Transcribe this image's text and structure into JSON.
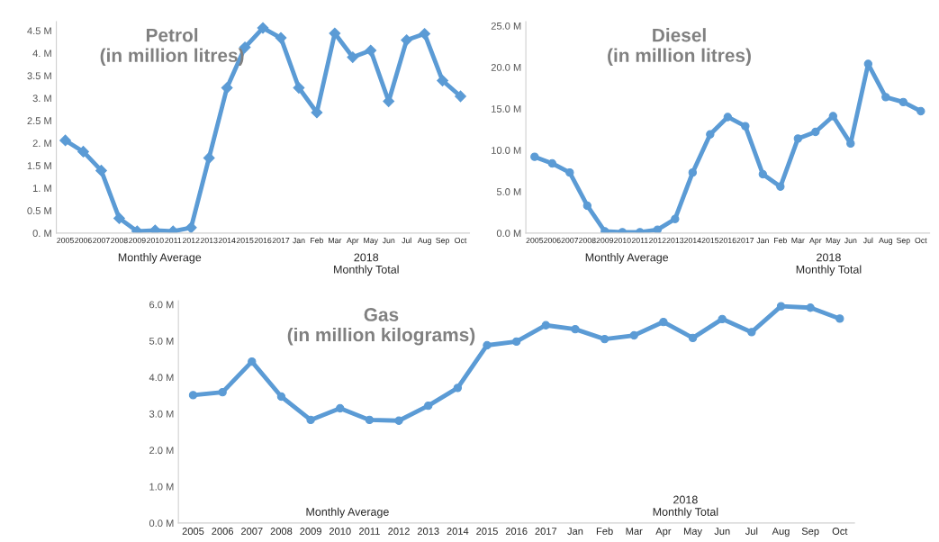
{
  "chart_data": [
    {
      "type": "line",
      "title": "Petrol\n(in million litres)",
      "categories": [
        "2005",
        "2006",
        "2007",
        "2008",
        "2009",
        "2010",
        "2011",
        "2012",
        "2013",
        "2014",
        "2015",
        "2016",
        "2017",
        "Jan",
        "Feb",
        "Mar",
        "Apr",
        "May",
        "Jun",
        "Jul",
        "Aug",
        "Sep",
        "Oct"
      ],
      "series": [
        {
          "color": "#5b9bd5",
          "values": [
            2.06,
            1.81,
            1.39,
            0.33,
            0.04,
            0.06,
            0.04,
            0.12,
            1.67,
            3.23,
            4.13,
            4.56,
            4.34,
            3.23,
            2.68,
            4.44,
            3.91,
            4.06,
            2.93,
            4.29,
            4.43,
            3.39,
            3.04
          ]
        }
      ],
      "ylim": [
        0,
        4.7
      ],
      "yticks": [
        {
          "value": 0,
          "label": "0. M"
        },
        {
          "value": 0.5,
          "label": "0.5 M"
        },
        {
          "value": 1,
          "label": "1. M"
        },
        {
          "value": 1.5,
          "label": "1.5 M"
        },
        {
          "value": 2,
          "label": "2. M"
        },
        {
          "value": 2.5,
          "label": "2.5 M"
        },
        {
          "value": 3,
          "label": "3. M"
        },
        {
          "value": 3.5,
          "label": "3.5 M"
        },
        {
          "value": 4,
          "label": "4. M"
        },
        {
          "value": 4.5,
          "label": "4.5 M"
        }
      ],
      "marker": "diamond",
      "grid": false,
      "annotations": [
        "Monthly Average",
        "2018\nMonthly Total"
      ]
    },
    {
      "type": "line",
      "title": "Diesel\n(in million litres)",
      "categories": [
        "2005",
        "2006",
        "2007",
        "2008",
        "2009",
        "2010",
        "2011",
        "2012",
        "2013",
        "2014",
        "2015",
        "2016",
        "2017",
        "Jan",
        "Feb",
        "Mar",
        "Apr",
        "May",
        "Jun",
        "Jul",
        "Aug",
        "Sep",
        "Oct"
      ],
      "series": [
        {
          "color": "#5b9bd5",
          "values": [
            9.2,
            8.4,
            7.3,
            3.3,
            0.2,
            0.1,
            0.1,
            0.4,
            1.7,
            7.3,
            11.9,
            14.0,
            12.9,
            7.1,
            5.6,
            11.4,
            12.2,
            14.1,
            10.8,
            20.4,
            16.4,
            15.8,
            14.7
          ]
        }
      ],
      "ylim": [
        0,
        25.5
      ],
      "yticks": [
        {
          "value": 0,
          "label": "0.0 M"
        },
        {
          "value": 5,
          "label": "5.0 M"
        },
        {
          "value": 10,
          "label": "10.0 M"
        },
        {
          "value": 15,
          "label": "15.0 M"
        },
        {
          "value": 20,
          "label": "20.0 M"
        },
        {
          "value": 25,
          "label": "25.0 M"
        }
      ],
      "marker": "circle",
      "grid": false,
      "annotations": [
        "Monthly Average",
        "2018\nMonthly Total"
      ]
    },
    {
      "type": "line",
      "title": "Gas\n(in million kilograms)",
      "categories": [
        "2005",
        "2006",
        "2007",
        "2008",
        "2009",
        "2010",
        "2011",
        "2012",
        "2013",
        "2014",
        "2015",
        "2016",
        "2017",
        "Jan",
        "Feb",
        "Mar",
        "Apr",
        "May",
        "Jun",
        "Jul",
        "Aug",
        "Sep",
        "Oct"
      ],
      "series": [
        {
          "color": "#5b9bd5",
          "values": [
            3.51,
            3.59,
            4.43,
            3.47,
            2.83,
            3.15,
            2.83,
            2.81,
            3.22,
            3.71,
            4.88,
            4.98,
            5.43,
            5.32,
            5.05,
            5.15,
            5.52,
            5.08,
            5.6,
            5.24,
            5.95,
            5.91,
            5.61
          ]
        }
      ],
      "ylim": [
        0,
        6.1
      ],
      "yticks": [
        {
          "value": 0,
          "label": "0.0 M"
        },
        {
          "value": 1,
          "label": "1.0 M"
        },
        {
          "value": 2,
          "label": "2.0 M"
        },
        {
          "value": 3,
          "label": "3.0 M"
        },
        {
          "value": 4,
          "label": "4.0 M"
        },
        {
          "value": 5,
          "label": "5.0 M"
        },
        {
          "value": 6,
          "label": "6.0 M"
        }
      ],
      "marker": "circle",
      "grid": false,
      "annotations": [
        "Monthly Average",
        "2018\nMonthly Total"
      ]
    }
  ]
}
